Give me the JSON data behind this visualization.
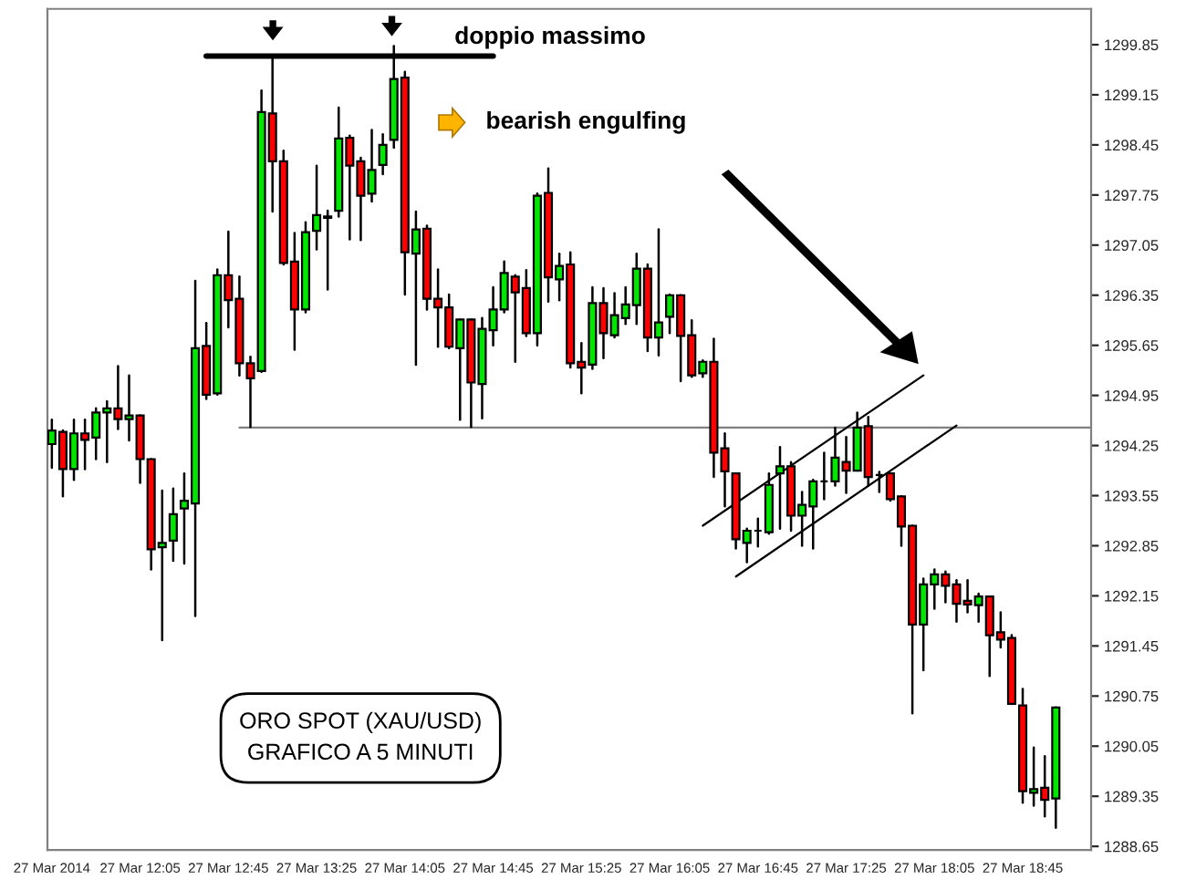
{
  "chart_data": {
    "type": "candlestick",
    "annotations": [
      "doppio massimo",
      "bearish engulfing",
      "ORO SPOT (XAU/USD)\nGRAFICO A 5 MINUTI"
    ],
    "x": [
      "2014-03-27T11:25",
      "2014-03-27T11:30",
      "2014-03-27T11:35",
      "2014-03-27T11:40",
      "2014-03-27T11:45",
      "2014-03-27T11:50",
      "2014-03-27T11:55",
      "2014-03-27T12:00",
      "2014-03-27T12:05",
      "2014-03-27T12:10",
      "2014-03-27T12:15",
      "2014-03-27T12:20",
      "2014-03-27T12:25",
      "2014-03-27T12:30",
      "2014-03-27T12:35",
      "2014-03-27T12:40",
      "2014-03-27T12:45",
      "2014-03-27T12:50",
      "2014-03-27T12:55",
      "2014-03-27T13:00",
      "2014-03-27T13:05",
      "2014-03-27T13:10",
      "2014-03-27T13:15",
      "2014-03-27T13:20",
      "2014-03-27T13:25",
      "2014-03-27T13:30",
      "2014-03-27T13:35",
      "2014-03-27T13:40",
      "2014-03-27T13:45",
      "2014-03-27T13:50",
      "2014-03-27T13:55",
      "2014-03-27T14:00",
      "2014-03-27T14:05",
      "2014-03-27T14:10",
      "2014-03-27T14:15",
      "2014-03-27T14:20",
      "2014-03-27T14:25",
      "2014-03-27T14:30",
      "2014-03-27T14:35",
      "2014-03-27T14:40",
      "2014-03-27T14:45",
      "2014-03-27T14:50",
      "2014-03-27T14:55",
      "2014-03-27T15:00",
      "2014-03-27T15:05",
      "2014-03-27T15:10",
      "2014-03-27T15:15",
      "2014-03-27T15:20",
      "2014-03-27T15:25",
      "2014-03-27T15:30",
      "2014-03-27T15:35",
      "2014-03-27T15:40",
      "2014-03-27T15:45",
      "2014-03-27T15:50",
      "2014-03-27T15:55",
      "2014-03-27T16:00",
      "2014-03-27T16:05",
      "2014-03-27T16:10",
      "2014-03-27T16:15",
      "2014-03-27T16:20",
      "2014-03-27T16:25",
      "2014-03-27T16:30",
      "2014-03-27T16:35",
      "2014-03-27T16:40",
      "2014-03-27T16:45",
      "2014-03-27T16:50",
      "2014-03-27T16:55",
      "2014-03-27T17:00",
      "2014-03-27T17:05",
      "2014-03-27T17:10",
      "2014-03-27T17:15",
      "2014-03-27T17:20",
      "2014-03-27T17:25",
      "2014-03-27T17:30",
      "2014-03-27T17:35",
      "2014-03-27T17:40",
      "2014-03-27T17:45",
      "2014-03-27T17:50",
      "2014-03-27T17:55",
      "2014-03-27T18:00",
      "2014-03-27T18:05",
      "2014-03-27T18:10",
      "2014-03-27T18:15",
      "2014-03-27T18:20",
      "2014-03-27T18:25",
      "2014-03-27T18:30",
      "2014-03-27T18:35",
      "2014-03-27T18:40",
      "2014-03-27T18:45",
      "2014-03-27T18:50",
      "2014-03-27T18:55",
      "2014-03-27T19:00"
    ],
    "ohlc": [
      [
        1294.27,
        1294.61,
        1293.94,
        1294.46
      ],
      [
        1294.44,
        1294.46,
        1293.54,
        1293.92
      ],
      [
        1293.92,
        1294.61,
        1293.77,
        1294.42
      ],
      [
        1294.42,
        1294.61,
        1293.92,
        1294.33
      ],
      [
        1294.36,
        1294.77,
        1294.06,
        1294.71
      ],
      [
        1294.71,
        1294.87,
        1294.02,
        1294.77
      ],
      [
        1294.77,
        1295.36,
        1294.48,
        1294.62
      ],
      [
        1294.62,
        1295.23,
        1294.32,
        1294.67
      ],
      [
        1294.67,
        1294.67,
        1293.73,
        1294.06
      ],
      [
        1294.06,
        1294.06,
        1292.52,
        1292.8
      ],
      [
        1292.83,
        1293.62,
        1291.53,
        1292.89
      ],
      [
        1292.92,
        1293.65,
        1292.64,
        1293.29
      ],
      [
        1293.37,
        1293.86,
        1292.6,
        1293.48
      ],
      [
        1293.44,
        1296.55,
        1291.87,
        1295.61
      ],
      [
        1295.64,
        1295.96,
        1294.9,
        1294.96
      ],
      [
        1294.98,
        1296.71,
        1294.96,
        1296.63
      ],
      [
        1296.63,
        1297.24,
        1295.9,
        1296.28
      ],
      [
        1296.3,
        1296.61,
        1295.23,
        1295.4
      ],
      [
        1295.4,
        1295.49,
        1294.51,
        1295.19
      ],
      [
        1295.29,
        1299.21,
        1295.28,
        1298.91
      ],
      [
        1298.89,
        1299.69,
        1297.52,
        1298.22
      ],
      [
        1298.22,
        1298.37,
        1296.78,
        1296.8
      ],
      [
        1296.82,
        1297.22,
        1295.59,
        1296.15
      ],
      [
        1296.15,
        1297.37,
        1296.11,
        1297.23
      ],
      [
        1297.25,
        1298.16,
        1296.99,
        1297.47
      ],
      [
        1297.43,
        1297.53,
        1296.43,
        1297.45
      ],
      [
        1297.53,
        1298.97,
        1297.45,
        1298.54
      ],
      [
        1298.55,
        1298.58,
        1297.13,
        1298.16
      ],
      [
        1298.22,
        1298.27,
        1297.12,
        1297.74
      ],
      [
        1297.77,
        1298.66,
        1297.66,
        1298.1
      ],
      [
        1298.17,
        1298.6,
        1298.04,
        1298.45
      ],
      [
        1298.52,
        1299.83,
        1298.41,
        1299.37
      ],
      [
        1299.39,
        1299.47,
        1296.36,
        1296.95
      ],
      [
        1296.93,
        1297.52,
        1295.38,
        1297.27
      ],
      [
        1297.28,
        1297.32,
        1296.15,
        1296.3
      ],
      [
        1296.3,
        1296.71,
        1295.63,
        1296.18
      ],
      [
        1296.18,
        1296.36,
        1295.61,
        1295.63
      ],
      [
        1295.61,
        1296.01,
        1294.61,
        1296.01
      ],
      [
        1296.01,
        1296.01,
        1294.51,
        1295.13
      ],
      [
        1295.11,
        1296.03,
        1294.63,
        1295.88
      ],
      [
        1295.86,
        1296.46,
        1295.65,
        1296.15
      ],
      [
        1296.15,
        1296.82,
        1296.11,
        1296.66
      ],
      [
        1296.61,
        1296.63,
        1295.42,
        1296.39
      ],
      [
        1296.45,
        1296.7,
        1295.78,
        1295.82
      ],
      [
        1295.82,
        1297.77,
        1295.65,
        1297.74
      ],
      [
        1297.78,
        1298.12,
        1296.26,
        1296.6
      ],
      [
        1296.57,
        1296.93,
        1296.28,
        1296.76
      ],
      [
        1296.78,
        1296.95,
        1295.34,
        1295.4
      ],
      [
        1295.42,
        1295.68,
        1294.98,
        1295.34
      ],
      [
        1295.38,
        1296.46,
        1295.32,
        1296.24
      ],
      [
        1296.24,
        1296.45,
        1295.47,
        1295.82
      ],
      [
        1295.79,
        1296.38,
        1295.76,
        1296.07
      ],
      [
        1296.03,
        1296.46,
        1295.95,
        1296.22
      ],
      [
        1296.21,
        1296.93,
        1295.95,
        1296.72
      ],
      [
        1296.72,
        1296.78,
        1295.57,
        1295.76
      ],
      [
        1295.76,
        1297.27,
        1295.51,
        1295.97
      ],
      [
        1296.05,
        1296.36,
        1295.82,
        1296.35
      ],
      [
        1296.35,
        1296.35,
        1295.15,
        1295.78
      ],
      [
        1295.79,
        1296.0,
        1295.21,
        1295.23
      ],
      [
        1295.26,
        1295.44,
        1295.21,
        1295.42
      ],
      [
        1295.42,
        1295.74,
        1293.81,
        1294.15
      ],
      [
        1294.21,
        1294.42,
        1293.4,
        1293.89
      ],
      [
        1293.86,
        1293.86,
        1292.81,
        1292.94
      ],
      [
        1292.89,
        1293.09,
        1292.62,
        1293.06
      ],
      [
        1293.06,
        1293.23,
        1292.84,
        1293.06
      ],
      [
        1293.04,
        1293.86,
        1293.02,
        1293.7
      ],
      [
        1293.86,
        1294.23,
        1293.09,
        1293.96
      ],
      [
        1293.96,
        1294.02,
        1293.06,
        1293.27
      ],
      [
        1293.27,
        1293.6,
        1292.85,
        1293.42
      ],
      [
        1293.4,
        1293.77,
        1292.81,
        1293.75
      ],
      [
        1293.75,
        1294.15,
        1293.5,
        1293.75
      ],
      [
        1293.75,
        1294.5,
        1293.69,
        1294.08
      ],
      [
        1294.02,
        1294.37,
        1293.59,
        1293.9
      ],
      [
        1293.9,
        1294.71,
        1293.9,
        1294.5
      ],
      [
        1294.52,
        1294.65,
        1293.69,
        1293.81
      ],
      [
        1293.84,
        1293.88,
        1293.6,
        1293.84
      ],
      [
        1293.86,
        1293.86,
        1293.48,
        1293.5
      ],
      [
        1293.54,
        1293.54,
        1292.85,
        1293.12
      ],
      [
        1293.13,
        1293.13,
        1290.51,
        1291.75
      ],
      [
        1291.75,
        1292.39,
        1291.11,
        1292.31
      ],
      [
        1292.31,
        1292.52,
        1291.97,
        1292.45
      ],
      [
        1292.45,
        1292.49,
        1292.06,
        1292.29
      ],
      [
        1292.31,
        1292.37,
        1291.79,
        1292.04
      ],
      [
        1292.08,
        1292.37,
        1291.92,
        1292.03
      ],
      [
        1292.02,
        1292.18,
        1291.79,
        1292.14
      ],
      [
        1292.14,
        1292.14,
        1291.03,
        1291.6
      ],
      [
        1291.64,
        1291.92,
        1291.43,
        1291.54
      ],
      [
        1291.56,
        1291.6,
        1290.64,
        1290.64
      ],
      [
        1290.62,
        1290.85,
        1289.26,
        1289.42
      ],
      [
        1289.4,
        1290.03,
        1289.22,
        1289.45
      ],
      [
        1289.47,
        1289.91,
        1289.07,
        1289.3
      ],
      [
        1289.32,
        1290.59,
        1288.91,
        1290.59
      ]
    ],
    "colors": [
      "#00e600",
      "#ff0000",
      "#00e600",
      "#ff0000",
      "#00e600",
      "#00e600",
      "#ff0000",
      "#00e600",
      "#ff0000",
      "#ff0000",
      "#00e600",
      "#00e600",
      "#00e600",
      "#00e600",
      "#ff0000",
      "#00e600",
      "#ff0000",
      "#ff0000",
      "#ff0000",
      "#00e600",
      "#ff0000",
      "#ff0000",
      "#ff0000",
      "#00e600",
      "#00e600",
      "#00e600",
      "#00e600",
      "#ff0000",
      "#ff0000",
      "#00e600",
      "#00e600",
      "#00e600",
      "#ff0000",
      "#00e600",
      "#ff0000",
      "#ff0000",
      "#ff0000",
      "#00e600",
      "#ff0000",
      "#00e600",
      "#00e600",
      "#00e600",
      "#ff0000",
      "#ff0000",
      "#00e600",
      "#ff0000",
      "#00e600",
      "#ff0000",
      "#ff0000",
      "#00e600",
      "#ff0000",
      "#00e600",
      "#00e600",
      "#00e600",
      "#ff0000",
      "#00e600",
      "#00e600",
      "#ff0000",
      "#ff0000",
      "#00e600",
      "#ff0000",
      "#ff0000",
      "#ff0000",
      "#00e600",
      "#000000",
      "#00e600",
      "#00e600",
      "#ff0000",
      "#00e600",
      "#00e600",
      "#000000",
      "#00e600",
      "#ff0000",
      "#00e600",
      "#ff0000",
      "#000000",
      "#ff0000",
      "#ff0000",
      "#ff0000",
      "#00e600",
      "#00e600",
      "#ff0000",
      "#ff0000",
      "#ff0000",
      "#00e600",
      "#ff0000",
      "#ff0000",
      "#ff0000",
      "#ff0000",
      "#00e600",
      "#ff0000",
      "#00e600"
    ],
    "series": [
      {
        "type": "line",
        "color": "#808080",
        "x": [
          "2014-03-27T12:50",
          "2014-03-27T19:16"
        ],
        "values": [
          1294.5,
          1294.5
        ]
      },
      {
        "type": "line",
        "color": "#000000",
        "x": [
          "2014-03-27T12:35",
          "2014-03-27T14:45"
        ],
        "values": [
          1299.69,
          1299.69
        ]
      },
      {
        "type": "line",
        "color": "#000000",
        "x": [
          "2014-03-27T16:20",
          "2014-03-27T18:00"
        ],
        "values": [
          1293.13,
          1295.23
        ]
      },
      {
        "type": "line",
        "color": "#000000",
        "x": [
          "2014-03-27T16:35",
          "2014-03-27T18:15"
        ],
        "values": [
          1292.42,
          1294.53
        ]
      }
    ],
    "xlim": [
      "2014-03-27T11:23",
      "2014-03-27T19:16"
    ],
    "xticks": [
      {
        "value": "2014-03-27T11:25",
        "label": "27 Mar 2014"
      },
      {
        "value": "2014-03-27T12:05",
        "label": "27 Mar 12:05"
      },
      {
        "value": "2014-03-27T12:45",
        "label": "27 Mar 12:45"
      },
      {
        "value": "2014-03-27T13:25",
        "label": "27 Mar 13:25"
      },
      {
        "value": "2014-03-27T14:05",
        "label": "27 Mar 14:05"
      },
      {
        "value": "2014-03-27T14:45",
        "label": "27 Mar 14:45"
      },
      {
        "value": "2014-03-27T15:25",
        "label": "27 Mar 15:25"
      },
      {
        "value": "2014-03-27T16:05",
        "label": "27 Mar 16:05"
      },
      {
        "value": "2014-03-27T16:45",
        "label": "27 Mar 16:45"
      },
      {
        "value": "2014-03-27T17:25",
        "label": "27 Mar 17:25"
      },
      {
        "value": "2014-03-27T18:05",
        "label": "27 Mar 18:05"
      },
      {
        "value": "2014-03-27T18:45",
        "label": "27 Mar 18:45"
      }
    ],
    "ylim": [
      1288.6,
      1300.35
    ],
    "yticks": [
      1288.65,
      1289.35,
      1290.05,
      1290.75,
      1291.45,
      1292.15,
      1292.85,
      1293.55,
      1294.25,
      1294.95,
      1295.65,
      1296.35,
      1297.05,
      1297.75,
      1298.45,
      1299.15,
      1299.85
    ],
    "grid": false,
    "legend": false
  }
}
